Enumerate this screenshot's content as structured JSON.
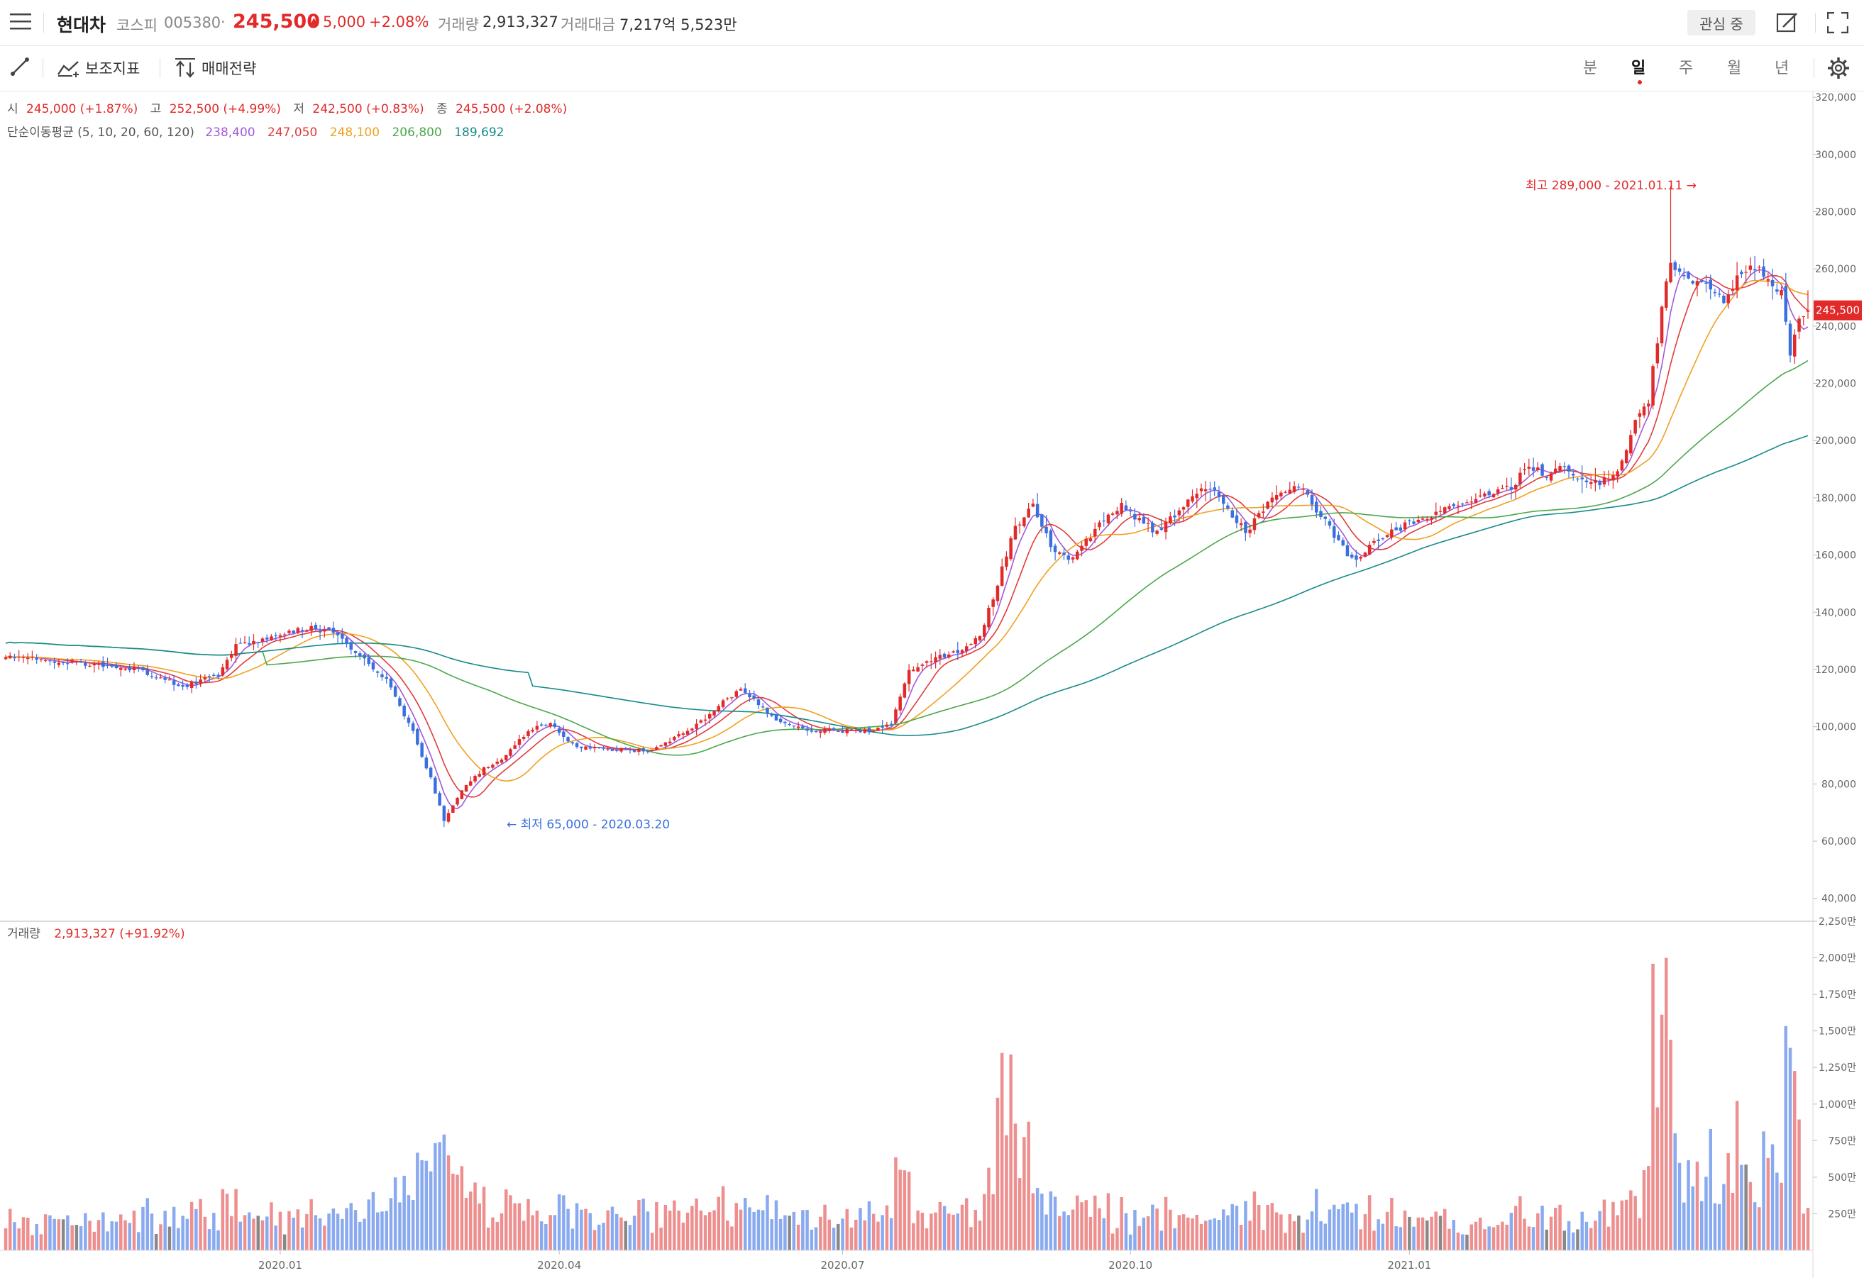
{
  "header": {
    "name": "현대차",
    "market": "코스피",
    "code": "005380",
    "sep": "·",
    "price": "245,500",
    "change_arrow": "▲",
    "change": "5,000",
    "change_pct": "+2.08%",
    "volume_label": "거래량",
    "volume": "2,913,327",
    "amount_label": "거래대금",
    "amount": "7,217억 5,523만",
    "watch_label": "관심 중"
  },
  "toolbar": {
    "indicator_label": "보조지표",
    "strategy_label": "매매전략",
    "timeframes": [
      "분",
      "일",
      "주",
      "월",
      "년"
    ],
    "active_timeframe": "일"
  },
  "ohlc": {
    "open_label": "시",
    "open": "245,000 (+1.87%)",
    "high_label": "고",
    "high": "252,500 (+4.99%)",
    "low_label": "저",
    "low": "242,500 (+0.83%)",
    "close_label": "종",
    "close": "245,500 (+2.08%)"
  },
  "ma_legend": {
    "label": "단순이동평균 (5, 10, 20, 60, 120)",
    "values": [
      "238,400",
      "247,050",
      "248,100",
      "206,800",
      "189,692"
    ],
    "colors": [
      "#a259d9",
      "#e23b3b",
      "#f0a020",
      "#4aa84a",
      "#178a8a"
    ]
  },
  "volume_legend": {
    "label": "거래량",
    "value": "2,913,327 (+91.92%)"
  },
  "annotations": {
    "high": "최고 289,000 - 2021.01.11 →",
    "low": "← 최저 65,000 - 2020.03.20"
  },
  "current_price_tag": "245,500",
  "colors": {
    "up": "#e22a2a",
    "down": "#3a6fe0",
    "up_volume": "#ee8f8f",
    "down_volume": "#8aaaf0",
    "flat_volume": "#888888"
  },
  "chart_data": {
    "type": "candlestick",
    "price_axis_ticks": [
      320000,
      300000,
      280000,
      260000,
      240000,
      220000,
      200000,
      180000,
      160000,
      140000,
      120000,
      100000,
      80000,
      60000,
      40000
    ],
    "price_ylim": [
      32000,
      322000
    ],
    "volume_axis_ticks": [
      "2,250만",
      "2,000만",
      "1,750만",
      "1,500만",
      "1,250만",
      "1,000만",
      "750만",
      "500만",
      "250만"
    ],
    "volume_ylim": [
      0,
      2250
    ],
    "x_labels": [
      "2020.01",
      "2020.04",
      "2020.07",
      "2020.10",
      "2021.01"
    ],
    "close_keypoints": [
      [
        0,
        124500
      ],
      [
        15,
        122500
      ],
      [
        30,
        120000
      ],
      [
        40,
        114000
      ],
      [
        48,
        118000
      ],
      [
        52,
        128500
      ],
      [
        60,
        131000
      ],
      [
        68,
        134500
      ],
      [
        74,
        133000
      ],
      [
        80,
        125000
      ],
      [
        86,
        116000
      ],
      [
        92,
        98000
      ],
      [
        96,
        82000
      ],
      [
        99,
        67000
      ],
      [
        103,
        78000
      ],
      [
        108,
        85500
      ],
      [
        113,
        90000
      ],
      [
        118,
        98500
      ],
      [
        123,
        101500
      ],
      [
        128,
        93500
      ],
      [
        135,
        92000
      ],
      [
        145,
        91500
      ],
      [
        152,
        97000
      ],
      [
        158,
        103000
      ],
      [
        163,
        110000
      ],
      [
        166,
        113000
      ],
      [
        170,
        108000
      ],
      [
        175,
        101000
      ],
      [
        180,
        99000
      ],
      [
        188,
        98500
      ],
      [
        196,
        98500
      ],
      [
        200,
        101500
      ],
      [
        204,
        119000
      ],
      [
        208,
        123000
      ],
      [
        212,
        125000
      ],
      [
        216,
        127000
      ],
      [
        220,
        132000
      ],
      [
        224,
        150000
      ],
      [
        228,
        170000
      ],
      [
        232,
        177000
      ],
      [
        236,
        163000
      ],
      [
        240,
        158000
      ],
      [
        244,
        165000
      ],
      [
        248,
        172000
      ],
      [
        252,
        178000
      ],
      [
        256,
        172000
      ],
      [
        260,
        168000
      ],
      [
        264,
        174000
      ],
      [
        268,
        181000
      ],
      [
        272,
        184000
      ],
      [
        276,
        176000
      ],
      [
        280,
        168000
      ],
      [
        284,
        176000
      ],
      [
        288,
        182000
      ],
      [
        292,
        184000
      ],
      [
        296,
        176000
      ],
      [
        300,
        167000
      ],
      [
        304,
        158000
      ],
      [
        308,
        163000
      ],
      [
        312,
        167000
      ],
      [
        318,
        172000
      ],
      [
        324,
        175000
      ],
      [
        330,
        179000
      ],
      [
        336,
        181000
      ],
      [
        340,
        184000
      ],
      [
        344,
        191000
      ],
      [
        348,
        188000
      ],
      [
        352,
        191000
      ],
      [
        356,
        186000
      ],
      [
        360,
        185000
      ],
      [
        364,
        190000
      ],
      [
        368,
        206000
      ],
      [
        371,
        214000
      ],
      [
        374,
        246000
      ],
      [
        376,
        263000
      ],
      [
        380,
        255000
      ],
      [
        384,
        256000
      ],
      [
        388,
        248000
      ],
      [
        391,
        256000
      ],
      [
        394,
        262000
      ],
      [
        398,
        258000
      ],
      [
        401,
        251000
      ],
      [
        403,
        230000
      ],
      [
        405,
        241000
      ],
      [
        407,
        245500
      ]
    ],
    "high": {
      "value": 289000,
      "date": "2021.01.11"
    },
    "low": {
      "value": 65000,
      "date": "2020.03.20"
    },
    "moving_averages": [
      {
        "name": "MA5",
        "period": 5,
        "last": 238400
      },
      {
        "name": "MA10",
        "period": 10,
        "last": 247050
      },
      {
        "name": "MA20",
        "period": 20,
        "last": 248100
      },
      {
        "name": "MA60",
        "period": 60,
        "last": 206800
      },
      {
        "name": "MA120",
        "period": 120,
        "last": 189692
      }
    ],
    "last_volume": 2913327
  }
}
